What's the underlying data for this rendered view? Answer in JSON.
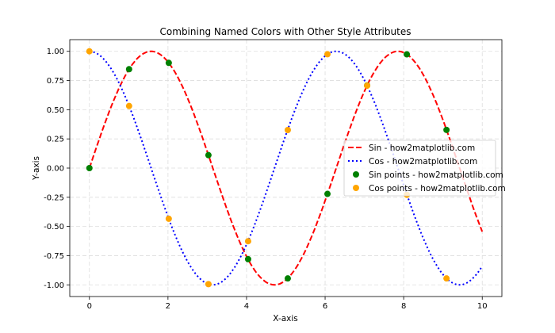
{
  "chart_data": {
    "type": "line",
    "title": "Combining Named Colors with Other Style Attributes",
    "xlabel": "X-axis",
    "ylabel": "Y-axis",
    "xlim": [
      -0.5,
      10.5
    ],
    "ylim": [
      -1.1,
      1.1
    ],
    "xticks": [
      "0",
      "2",
      "4",
      "6",
      "8",
      "10"
    ],
    "xtick_values": [
      0,
      2,
      4,
      6,
      8,
      10
    ],
    "yticks": [
      "1.00",
      "0.75",
      "0.50",
      "0.25",
      "0.00",
      "-0.25",
      "-0.50",
      "-0.75",
      "-1.00"
    ],
    "ytick_values": [
      1,
      0.75,
      0.5,
      0.25,
      0,
      -0.25,
      -0.5,
      -0.75,
      -1
    ],
    "grid": true,
    "legend_placement": "center-right",
    "lines": [
      {
        "name": "Sin - how2matplotlib.com",
        "function": "sin",
        "x_range": [
          0,
          10
        ],
        "color": "#ff0000",
        "style": "dashed"
      },
      {
        "name": "Cos - how2matplotlib.com",
        "function": "cos",
        "x_range": [
          0,
          10
        ],
        "color": "#0000ff",
        "style": "dotted"
      }
    ],
    "scatter": [
      {
        "name": "Sin points - how2matplotlib.com",
        "color": "#008000",
        "x": [
          0,
          1.01,
          2.02,
          3.03,
          4.04,
          5.05,
          6.06,
          7.07,
          8.08,
          9.09
        ],
        "y": [
          0,
          0.847,
          0.901,
          0.111,
          -0.78,
          -0.945,
          -0.221,
          0.708,
          0.974,
          0.327
        ]
      },
      {
        "name": "Cos points - how2matplotlib.com",
        "color": "#ffa500",
        "x": [
          0,
          1.01,
          2.02,
          3.03,
          4.04,
          5.05,
          6.06,
          7.07,
          8.08,
          9.09
        ],
        "y": [
          1,
          0.532,
          -0.434,
          -0.994,
          -0.626,
          0.326,
          0.975,
          0.706,
          -0.229,
          -0.945
        ]
      }
    ]
  }
}
